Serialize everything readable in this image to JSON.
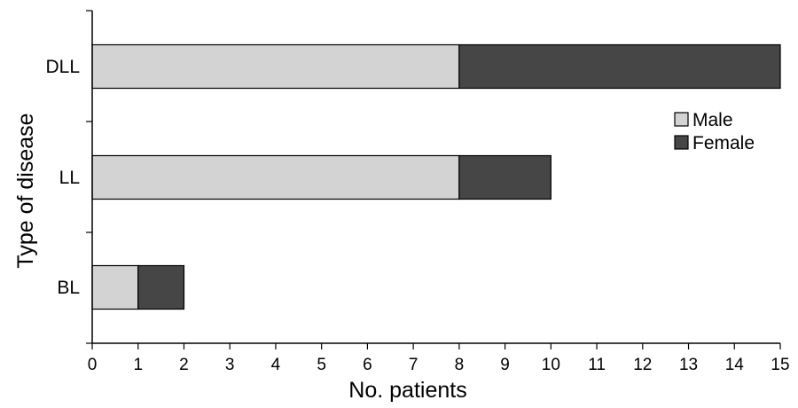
{
  "chart_data": {
    "type": "bar",
    "orientation": "horizontal",
    "stacked": true,
    "categories": [
      "BL",
      "LL",
      "DLL"
    ],
    "series": [
      {
        "name": "Male",
        "values": [
          1,
          8,
          8
        ],
        "color": "#d3d3d3"
      },
      {
        "name": "Female",
        "values": [
          1,
          2,
          7
        ],
        "color": "#464646"
      }
    ],
    "xlabel": "No. patients",
    "ylabel": "Type of disease",
    "xlim": [
      0,
      15
    ],
    "xticks": [
      "0",
      "1",
      "2",
      "3",
      "4",
      "5",
      "6",
      "7",
      "8",
      "9",
      "10",
      "11",
      "12",
      "13",
      "14",
      "15"
    ],
    "grid": false,
    "legend_position": "right"
  }
}
